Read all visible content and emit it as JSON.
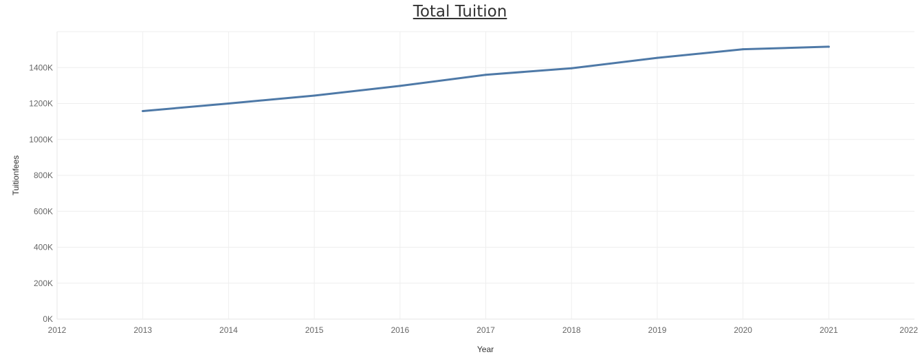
{
  "chart_data": {
    "type": "line",
    "title": "Total Tuition",
    "xlabel": "Year",
    "ylabel": "Tuitionfees",
    "x": [
      2013,
      2014,
      2015,
      2016,
      2017,
      2018,
      2019,
      2020,
      2021
    ],
    "series": [
      {
        "values": [
          1158000,
          1200000,
          1244000,
          1298000,
          1360000,
          1396000,
          1454000,
          1502000,
          1516000
        ]
      }
    ],
    "xlim": [
      2012,
      2022
    ],
    "ylim": [
      0,
      1600000
    ],
    "xticks": [
      "2012",
      "2013",
      "2014",
      "2015",
      "2016",
      "2017",
      "2018",
      "2019",
      "2020",
      "2021",
      "2022"
    ],
    "yticks": [
      "0K",
      "200K",
      "400K",
      "600K",
      "800K",
      "1000K",
      "1200K",
      "1400K"
    ],
    "grid": true,
    "legend": "none",
    "colors": {
      "line": "#4e79a7",
      "grid": "#eeeeee"
    }
  }
}
